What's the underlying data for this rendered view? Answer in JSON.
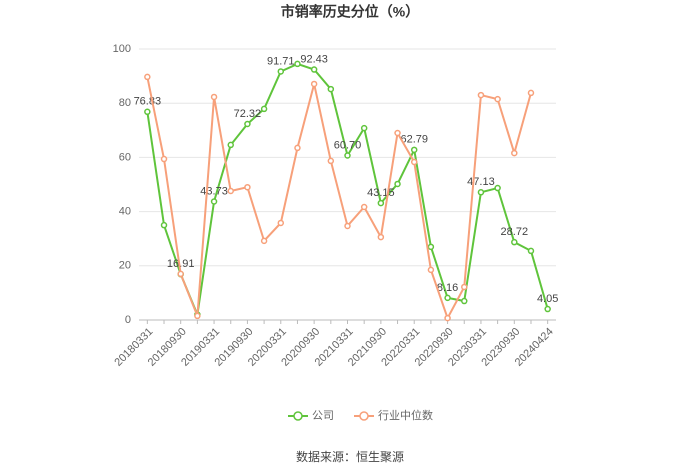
{
  "chart_data": {
    "type": "line",
    "title": "市销率历史分位（%）",
    "source": "数据来源：恒生聚源",
    "categories": [
      "20180331",
      null,
      "20180930",
      null,
      "20190331",
      null,
      "20190930",
      null,
      "20200331",
      null,
      "20200930",
      null,
      "20210331",
      null,
      "20210930",
      null,
      "20220331",
      null,
      "20220930",
      null,
      "20230331",
      null,
      "20230930",
      null,
      "20240424"
    ],
    "series": [
      {
        "name": "公司",
        "color": "#5fc43b",
        "values": [
          76.83,
          35,
          16.91,
          2,
          43.73,
          64.6,
          72.32,
          77.9,
          91.71,
          94.5,
          92.43,
          85.2,
          60.7,
          70.8,
          43.15,
          50.2,
          62.79,
          27,
          8.16,
          7,
          47.13,
          48.7,
          28.72,
          25.5,
          4.05
        ],
        "value_labels": [
          "76.83",
          null,
          "16.91",
          null,
          "43.73",
          null,
          "72.32",
          null,
          "91.71",
          null,
          "92.43",
          null,
          "60.70",
          null,
          "43.15",
          null,
          "62.79",
          null,
          "8.16",
          null,
          "47.13",
          null,
          "28.72",
          null,
          "4.05"
        ]
      },
      {
        "name": "行业中位数",
        "color": "#f7a07a",
        "values": [
          89.7,
          59.4,
          17,
          1.5,
          82.3,
          47.6,
          49,
          29.2,
          35.8,
          63.5,
          87.1,
          58.7,
          34.7,
          41.7,
          30.6,
          69,
          58.3,
          18.5,
          0.7,
          12.2,
          83,
          81.5,
          61.6,
          83.8,
          null
        ]
      }
    ],
    "ylim": [
      0,
      100
    ],
    "yticks": [
      0,
      20,
      40,
      60,
      80,
      100
    ],
    "grid": true
  }
}
